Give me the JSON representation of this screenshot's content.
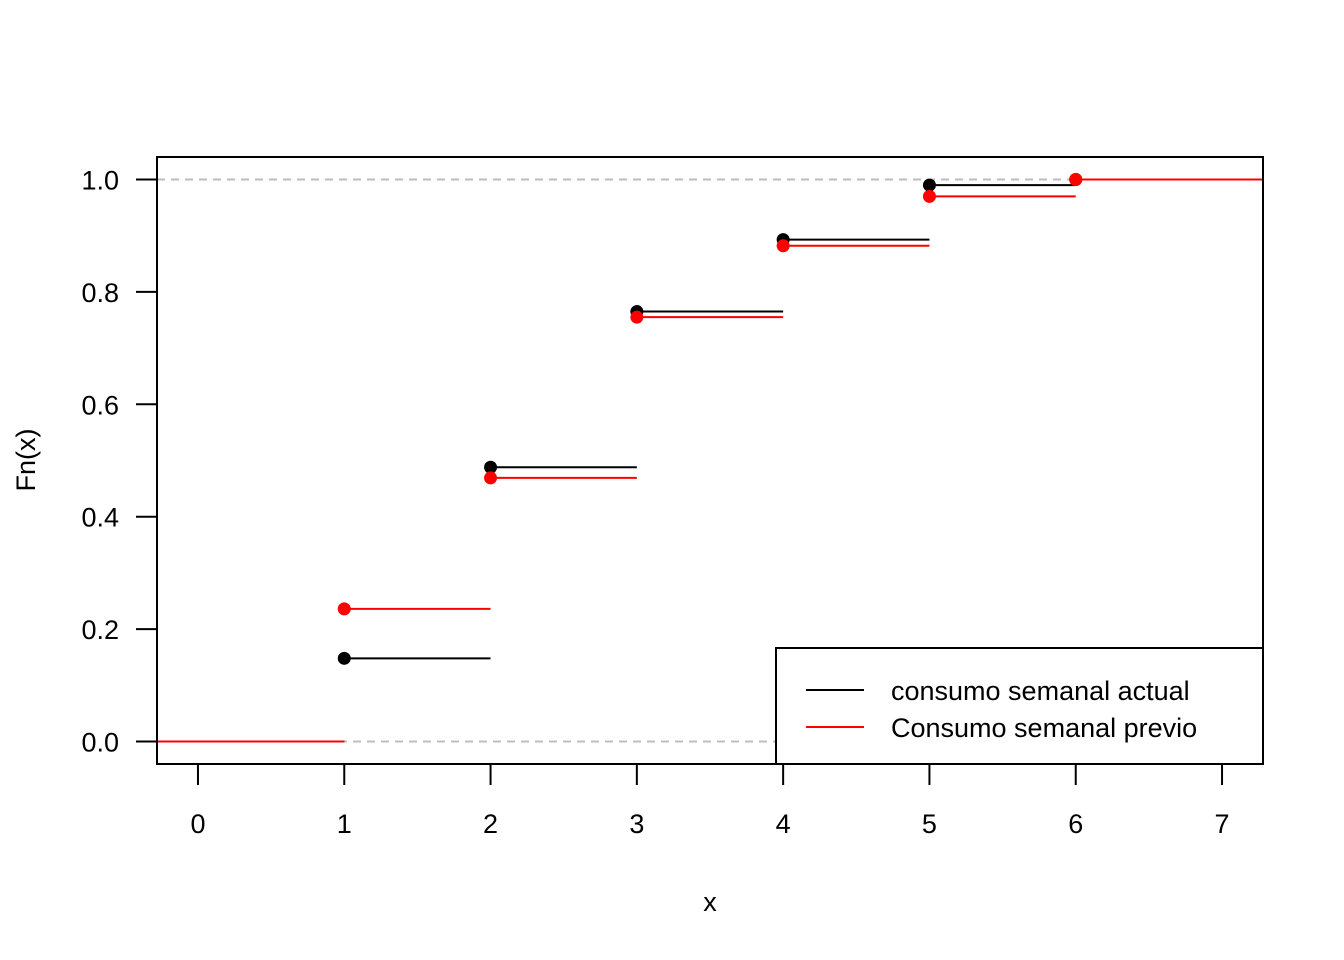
{
  "chart_data": {
    "type": "line",
    "subtype": "step-ecdf",
    "title": "",
    "xlabel": "x",
    "ylabel": "Fn(x)",
    "xlim": [
      -0.28,
      7.28
    ],
    "ylim": [
      -0.04,
      1.04
    ],
    "x_ticks": [
      "0",
      "1",
      "2",
      "3",
      "4",
      "5",
      "6",
      "7"
    ],
    "y_ticks": [
      "0.0",
      "0.2",
      "0.4",
      "0.6",
      "0.8",
      "1.0"
    ],
    "x_tick_values": [
      0,
      1,
      2,
      3,
      4,
      5,
      6,
      7
    ],
    "y_tick_values": [
      0.0,
      0.2,
      0.4,
      0.6,
      0.8,
      1.0
    ],
    "reference_lines": [
      0,
      1
    ],
    "grid": false,
    "legend_position": "bottom-right",
    "series": [
      {
        "name": "consumo semanal actual",
        "color": "#000000",
        "x": [
          1,
          2,
          3,
          4,
          5,
          6
        ],
        "values": [
          0.148,
          0.488,
          0.765,
          0.893,
          0.99,
          1.0
        ]
      },
      {
        "name": "Consumo semanal previo",
        "color": "#ff0000",
        "x": [
          1,
          2,
          3,
          4,
          5,
          6
        ],
        "values": [
          0.236,
          0.469,
          0.755,
          0.882,
          0.97,
          1.0
        ]
      }
    ]
  }
}
